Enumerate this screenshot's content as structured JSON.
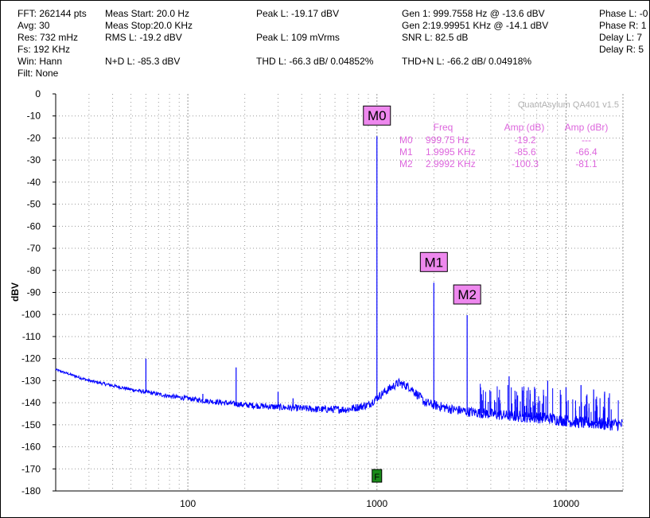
{
  "stats": {
    "fft": "FFT: 262144 pts",
    "avg": "Avg: 30",
    "res": "Res: 732 mHz",
    "fs": "Fs: 192 KHz",
    "win": "Win: Hann",
    "filt": "Filt: None",
    "meas_start": "Meas Start: 20.0 Hz",
    "meas_stop": "Meas Stop:20.0 KHz",
    "rms_l": "RMS L: -19.2 dBV",
    "nd_l": "N+D L: -85.3 dBV",
    "peak_l_dbv": "Peak L: -19.17 dBV",
    "peak_l_mv": "Peak L: 109 mVrms",
    "thd_l": "THD L: -66.3 dB/ 0.04852%",
    "gen1": "Gen 1: 999.7558 Hz @ -13.6  dBV",
    "gen2": "Gen 2:19.99951 KHz @ -14.1  dBV",
    "snr_l": "SNR L: 82.5 dB",
    "thdn_l": "THD+N L: -66.2 dB/ 0.04918%",
    "phase_l": "Phase L: -0",
    "phase_r": "Phase R: 1",
    "delay_l": "Delay L: 7",
    "delay_r": "Delay R: 5"
  },
  "watermark": "QuantAsylum QA401 v1.5",
  "markers_table": {
    "headers": [
      "Freq",
      "Amp (dB)",
      "Amp (dBr)"
    ],
    "rows": [
      {
        "name": "M0",
        "freq": "999.75 Hz",
        "amp_db": "-19.2",
        "amp_dbr": "---"
      },
      {
        "name": "M1",
        "freq": "1.9995 KHz",
        "amp_db": "-85.6",
        "amp_dbr": "-66.4"
      },
      {
        "name": "M2",
        "freq": "2.9992 KHz",
        "amp_db": "-100.3",
        "amp_dbr": "-81.1"
      }
    ]
  },
  "marker_flag": "F",
  "colors": {
    "trace": "#0000ff",
    "marker_box": "#ee88ee",
    "marker_text": "#dd66dd",
    "flag": "#1a8a1a",
    "grid": "#9a9a9a"
  },
  "chart_data": {
    "type": "line",
    "title": "",
    "xlabel": "",
    "ylabel": "dBV",
    "x_scale": "log",
    "xlim": [
      20,
      20000
    ],
    "ylim": [
      -180,
      0
    ],
    "x_tick_labels": [
      "100",
      "1000",
      "10000"
    ],
    "y_tick_labels": [
      "0",
      "-10",
      "-20",
      "-30",
      "-40",
      "-50",
      "-60",
      "-70",
      "-80",
      "-90",
      "-100",
      "-110",
      "-120",
      "-130",
      "-140",
      "-150",
      "-160",
      "-170",
      "-180"
    ],
    "grid": true,
    "series": [
      {
        "color": "#0000ff",
        "floor": {
          "x": [
            20,
            30,
            50,
            80,
            120,
            200,
            300,
            500,
            700,
            900,
            1100,
            1300,
            1500,
            1800,
            2000,
            2500,
            3000,
            5000,
            8000,
            12000,
            20000
          ],
          "y": [
            -125,
            -130,
            -134,
            -137,
            -139,
            -141,
            -142,
            -143,
            -143,
            -141,
            -135,
            -131,
            -133,
            -140,
            -141,
            -143,
            -144,
            -146,
            -147,
            -149,
            -150
          ]
        },
        "spikes": [
          {
            "x": 60,
            "y": -120
          },
          {
            "x": 120,
            "y": -136
          },
          {
            "x": 180,
            "y": -124
          },
          {
            "x": 300,
            "y": -135
          },
          {
            "x": 360,
            "y": -138
          },
          {
            "x": 999.75,
            "y": -19.2
          },
          {
            "x": 1999.5,
            "y": -85.6
          },
          {
            "x": 2999.2,
            "y": -100.3
          },
          {
            "x": 5000,
            "y": -128
          },
          {
            "x": 8000,
            "y": -130
          },
          {
            "x": 10000,
            "y": -133
          },
          {
            "x": 12000,
            "y": -132
          },
          {
            "x": 14000,
            "y": -134
          },
          {
            "x": 16000,
            "y": -135
          }
        ]
      }
    ],
    "markers": [
      {
        "name": "M0",
        "x": 999.75,
        "y": -19.2
      },
      {
        "name": "M1",
        "x": 1999.5,
        "y": -85.6
      },
      {
        "name": "M2",
        "x": 2999.2,
        "y": -100.3
      }
    ]
  }
}
